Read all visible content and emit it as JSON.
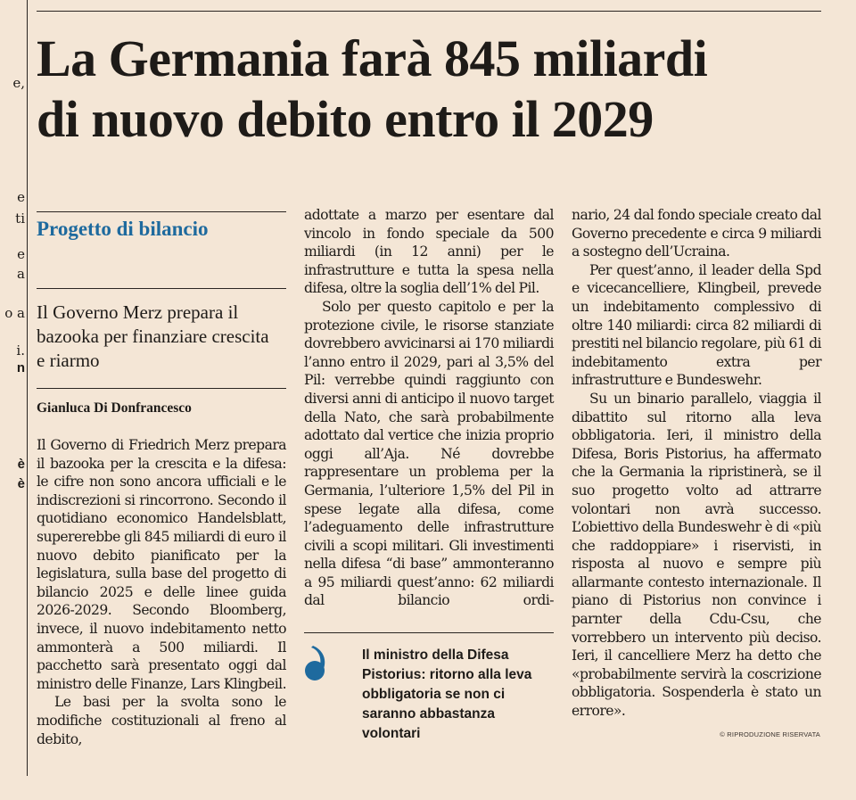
{
  "article": {
    "headline_line1": "La Germania farà 845 miliardi",
    "headline_line2": "di nuovo debito entro il 2029",
    "section_label": "Progetto di bilancio",
    "subtitle": "Il Governo Merz prepara il bazooka per finanziare crescita e riarmo",
    "author": "Gianluca Di Donfrancesco",
    "col1": [
      "Il Governo di Friedrich Merz prepara il bazooka per la crescita e la difesa: le cifre non sono ancora ufficiali e le indiscrezioni si rincorrono. Secondo il quotidiano economico Handelsblatt, supererebbe gli 845 miliardi di euro il nuovo debito pianificato per la legislatura, sulla base del progetto di bilancio 2025 e delle linee guida 2026-2029. Secondo Bloomberg, invece, il nuovo indebitamento netto ammonterà a 500 miliardi. Il pacchetto sarà presentato oggi dal ministro delle Finanze, Lars Klingbeil.",
      "Le basi per la svolta sono le modifiche costituzionali al freno al debito,"
    ],
    "col2": [
      "adottate a marzo per esentare dal vincolo in fondo speciale da 500 miliardi (in 12 anni) per le infrastrutture e tutta la spesa nella difesa, oltre la soglia dell’1% del Pil.",
      "Solo per questo capitolo e per la protezione civile, le risorse stanziate dovrebbero avvicinarsi ai 170 miliardi l’anno entro il 2029, pari al 3,5% del Pil: verrebbe quindi raggiunto con diversi anni di anticipo il nuovo target della Nato, che sarà probabilmente adottato dal vertice che inizia proprio oggi all’Aja. Né dovrebbe rappresentare un problema per la Germania, l’ulteriore 1,5% del Pil in spese legate alla difesa, come l’adeguamento delle infrastrutture civili a scopi militari. Gli investimenti nella difesa “di base” ammonteranno a 95 miliardi quest’anno: 62 miliardi dal bilancio ordi-"
    ],
    "col3": [
      "nario, 24 dal fondo speciale creato dal Governo precedente e circa 9 miliardi a sostegno dell’Ucraina.",
      "Per quest’anno, il leader della Spd e vicecancelliere, Klingbeil, prevede un indebitamento complessivo di oltre 140 miliardi: circa 82 miliardi di prestiti nel bilancio regolare, più 61 di indebitamento extra per infrastrutture e Bundeswehr.",
      "Su un binario parallelo, viaggia il dibattito sul ritorno alla leva obbligatoria. Ieri, il ministro della Difesa, Boris Pistorius, ha affermato che la Germania la ripristinerà, se il suo progetto volto ad attrarre volontari non avrà successo. L’obiettivo della Bundeswehr è di «più che raddoppiare» i riservisti, in risposta al nuovo e sempre più allarmante contesto internazionale. Il piano di Pistorius non convince i parnter della Cdu-Csu, che vorrebbero un intervento più deciso. Ieri, il cancelliere Merz ha detto che «probabilmente servirà la coscrizione obbligatoria. Sospenderla è stato un errore»."
    ],
    "pullquote": "Il ministro della Difesa Pistorius: ritorno alla leva obbligatoria se non ci saranno abbastanza volontari",
    "copyright": "© RIPRODUZIONE RISERVATA"
  },
  "prev_column_fragments": [
    "e,",
    "e",
    "ti",
    "e",
    "a",
    "o a",
    "i.",
    "n",
    "è",
    "è"
  ],
  "colors": {
    "background": "#f4e6d6",
    "text": "#1e1b18",
    "accent_blue": "#1e6a9e"
  },
  "icons": {
    "quote_mark": "opening-quote-icon"
  }
}
